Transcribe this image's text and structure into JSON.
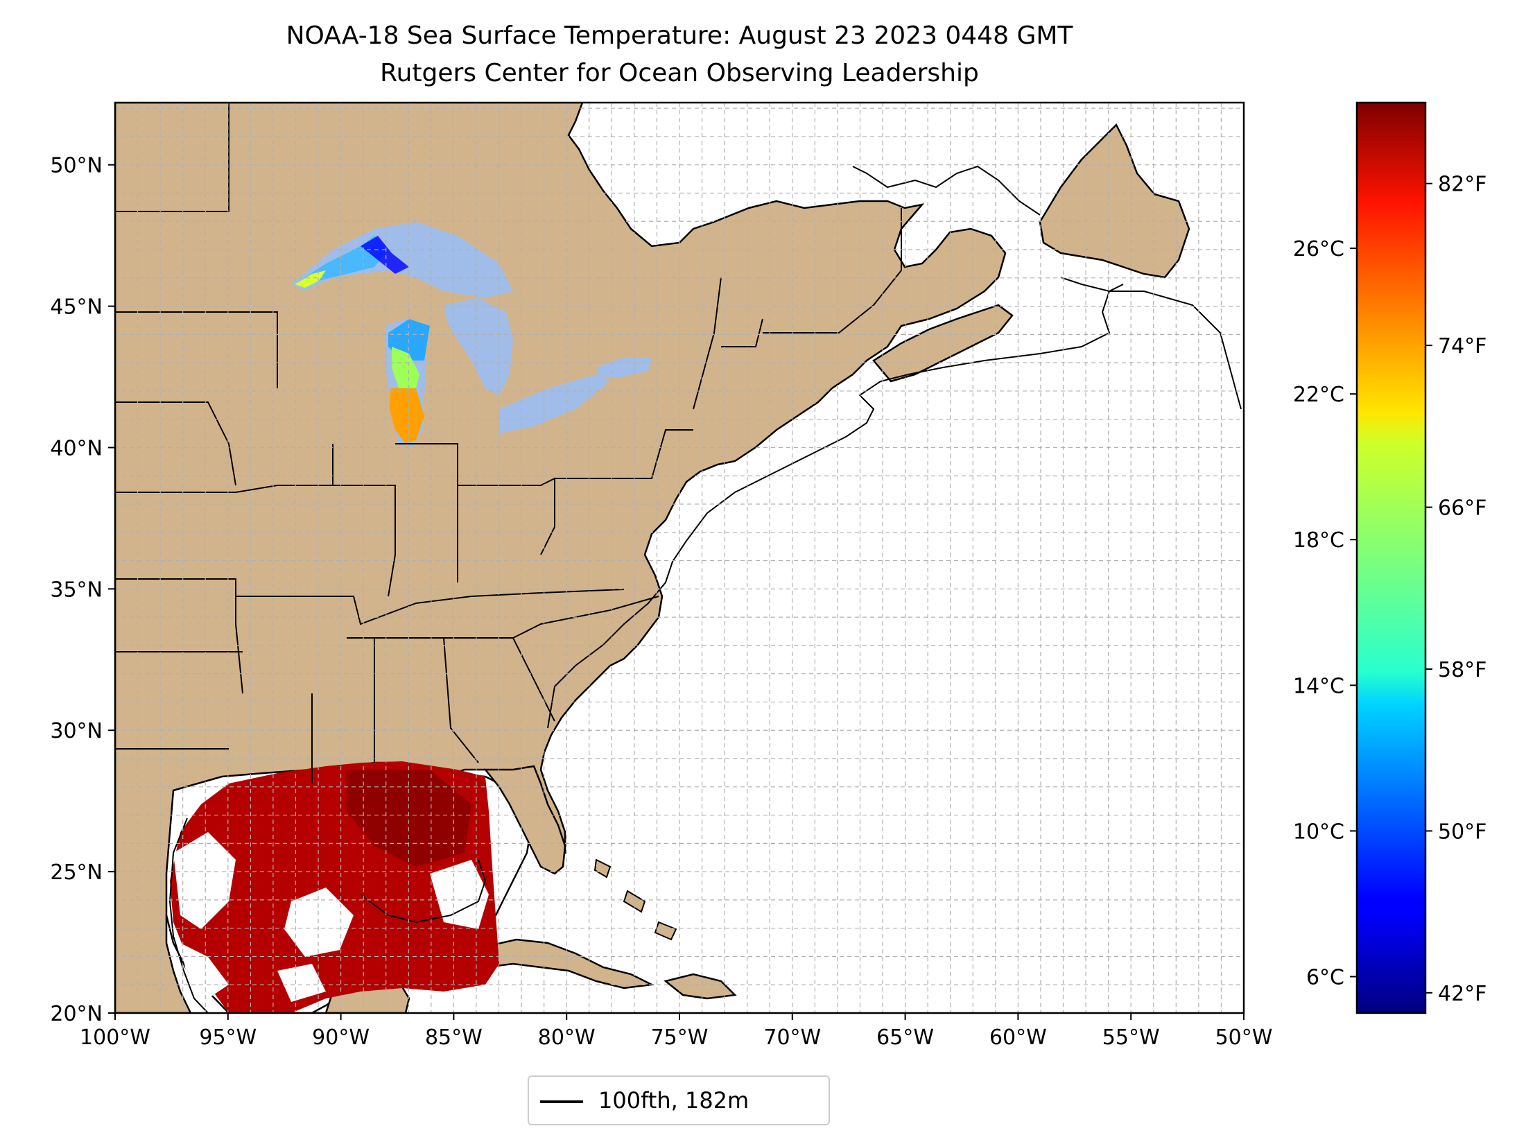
{
  "title": {
    "line1": "NOAA-18 Sea Surface Temperature: August 23 2023 0448 GMT",
    "line2": "Rutgers Center for Ocean Observing Leadership"
  },
  "map": {
    "projection": "plate carree",
    "lon_range": [
      -100,
      -50
    ],
    "lat_range": [
      20,
      52.2
    ],
    "gridlines": "dashed, every 1 degree",
    "land_color": "#d2b48c",
    "lake_color": "#9fbde8",
    "ocean_color": "#ffffff",
    "lon_ticks": [
      "100°W",
      "95°W",
      "90°W",
      "85°W",
      "80°W",
      "75°W",
      "70°W",
      "65°W",
      "60°W",
      "55°W",
      "50°W"
    ],
    "lat_ticks": [
      "20°N",
      "25°N",
      "30°N",
      "35°N",
      "40°N",
      "45°N",
      "50°N"
    ],
    "features": [
      "coastlines",
      "US state borders",
      "Canadian province borders",
      "100 fathom isobath",
      "Great Lakes"
    ],
    "sst_coverage": [
      "Gulf of Mexico",
      "Lake Michigan",
      "Lake Superior (western)"
    ]
  },
  "colorbar": {
    "colormap": "jet",
    "range_c": [
      5.0,
      30.0
    ],
    "celsius_ticks": [
      "6°C",
      "10°C",
      "14°C",
      "18°C",
      "22°C",
      "26°C"
    ],
    "fahrenheit_ticks": [
      "42°F",
      "50°F",
      "58°F",
      "66°F",
      "74°F",
      "82°F"
    ]
  },
  "legend": {
    "label": "100fth, 182m",
    "line_color": "#000000"
  }
}
